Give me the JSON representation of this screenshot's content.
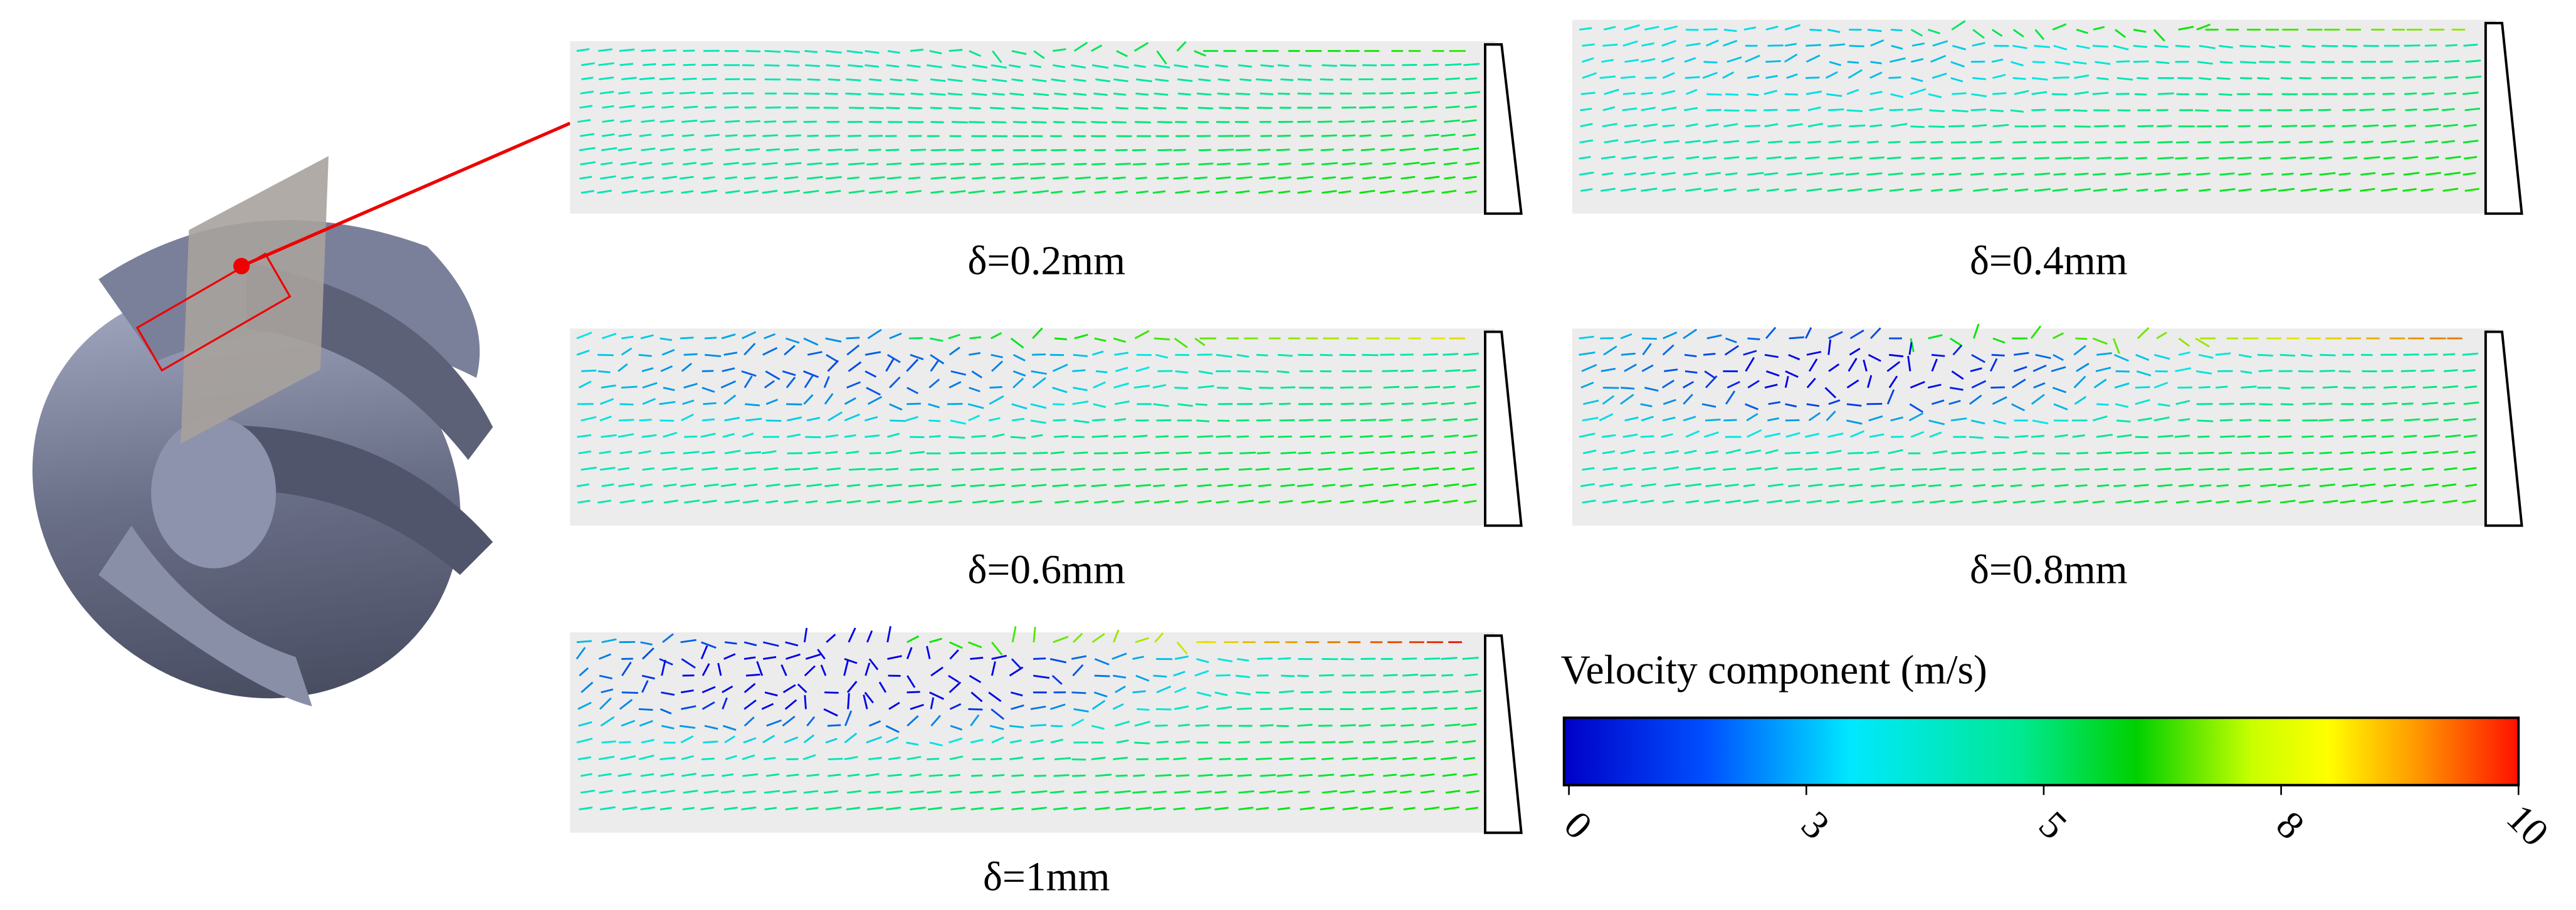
{
  "figure": {
    "panels": [
      {
        "label": "δ=0.2mm"
      },
      {
        "label": "δ=0.4mm"
      },
      {
        "label": "δ=0.6mm"
      },
      {
        "label": "δ=0.8mm"
      },
      {
        "label": "δ=1mm"
      }
    ],
    "colorbar": {
      "title": "Velocity component (m/s)",
      "tick_labels": [
        0,
        3,
        5,
        8,
        10
      ]
    }
  }
}
